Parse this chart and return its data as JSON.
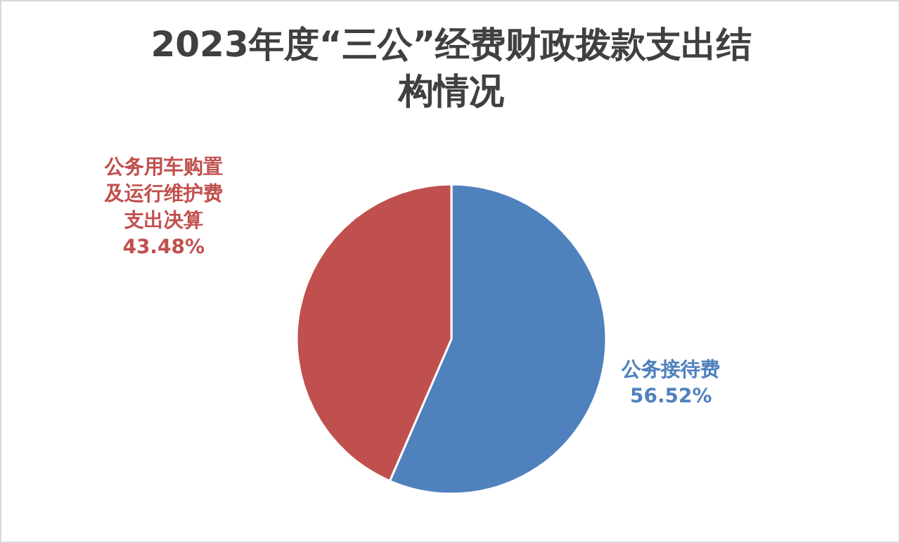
{
  "chart_data": {
    "type": "pie",
    "title": "2023年度“三公”经费财政拨款支出结构情况",
    "categories": [
      "公务接待费",
      "公务用车购置及运行维护费支出决算"
    ],
    "values": [
      56.52,
      43.48
    ],
    "colors": [
      "#4f81bd",
      "#c0504d"
    ],
    "value_labels": [
      "56.52%",
      "43.48%"
    ]
  }
}
